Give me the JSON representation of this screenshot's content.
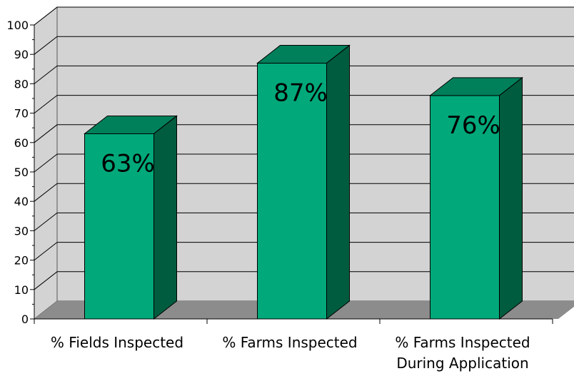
{
  "colors": {
    "bar_front": "#00a87a",
    "bar_top": "#00805a",
    "bar_side": "#005c3e",
    "wall": "#d3d3d3",
    "floor": "#8c8c8c",
    "grid": "#000000"
  },
  "chart_data": {
    "type": "bar",
    "categories": [
      [
        "% Fields Inspected"
      ],
      [
        "% Farms Inspected"
      ],
      [
        "% Farms Inspected",
        "During Application"
      ]
    ],
    "values": [
      63,
      87,
      76
    ],
    "data_labels": [
      "63%",
      "87%",
      "76%"
    ],
    "ylim": [
      0,
      100
    ],
    "yticks": [
      0,
      10,
      20,
      30,
      40,
      50,
      60,
      70,
      80,
      90,
      100
    ],
    "grid": true,
    "three_d": true,
    "title": "",
    "xlabel": "",
    "ylabel": ""
  }
}
